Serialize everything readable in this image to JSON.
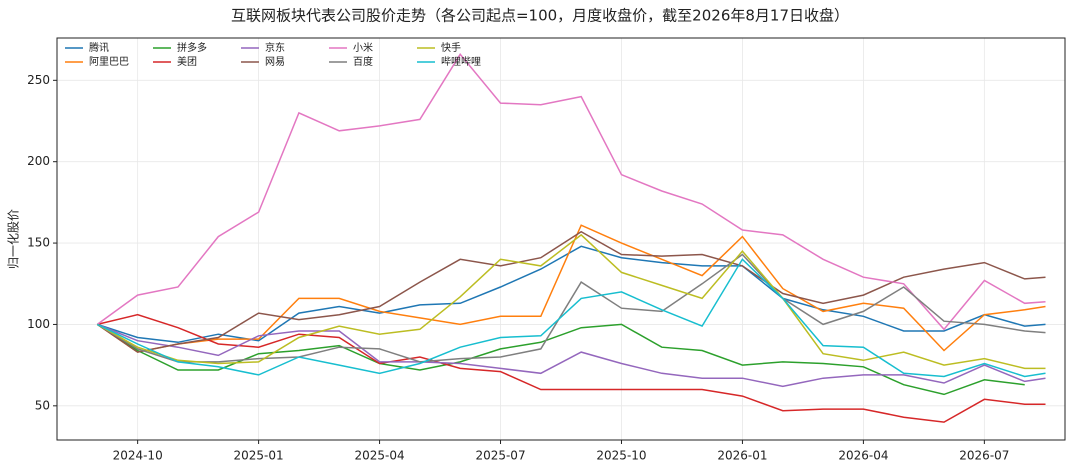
{
  "chart_data": {
    "type": "line",
    "title": "互联网板块代表公司股价走势（各公司起点=100，月度收盘价，截至2026年8月17日收盘）",
    "y_label": "归一化股价",
    "x": [
      "2024-09",
      "2024-10",
      "2024-11",
      "2024-12",
      "2025-01",
      "2025-02",
      "2025-03",
      "2025-04",
      "2025-05",
      "2025-06",
      "2025-07",
      "2025-08",
      "2025-09",
      "2025-10",
      "2025-11",
      "2025-12",
      "2026-01",
      "2026-02",
      "2026-03",
      "2026-04",
      "2026-05",
      "2026-06",
      "2026-07",
      "2026-08",
      "2026-08-17"
    ],
    "xlim": [
      "2024-08",
      "2026-09"
    ],
    "xticks": [
      "2024-10",
      "2025-01",
      "2025-04",
      "2025-07",
      "2025-10",
      "2026-01",
      "2026-04",
      "2026-07"
    ],
    "ylim": [
      29,
      276
    ],
    "yticks": [
      50,
      100,
      150,
      200,
      250
    ],
    "grid": true,
    "legend": "upper-left",
    "series": [
      {
        "name": "腾讯",
        "color": "#1f77b4",
        "values": [
          100,
          92,
          89,
          94,
          90,
          107,
          111,
          107,
          112,
          113,
          123,
          134,
          148,
          141,
          138,
          136,
          136,
          116,
          109,
          105,
          96,
          96,
          106,
          99,
          100
        ]
      },
      {
        "name": "阿里巴巴",
        "color": "#ff7f0e",
        "values": [
          100,
          83,
          88,
          91,
          91,
          116,
          116,
          108,
          104,
          100,
          105,
          105,
          161,
          150,
          140,
          130,
          154,
          122,
          108,
          113,
          110,
          84,
          106,
          109,
          111
        ]
      },
      {
        "name": "拼多多",
        "color": "#2ca02c",
        "values": [
          100,
          84,
          72,
          72,
          82,
          84,
          87,
          76,
          72,
          77,
          85,
          89,
          98,
          100,
          86,
          84,
          75,
          77,
          76,
          74,
          63,
          57,
          66,
          63,
          null
        ]
      },
      {
        "name": "美团",
        "color": "#d62728",
        "values": [
          100,
          106,
          98,
          88,
          86,
          94,
          92,
          76,
          80,
          73,
          71,
          60,
          60,
          60,
          60,
          60,
          56,
          47,
          48,
          48,
          43,
          40,
          54,
          51,
          51
        ]
      },
      {
        "name": "京东",
        "color": "#9467bd",
        "values": [
          100,
          90,
          86,
          81,
          93,
          96,
          96,
          77,
          77,
          76,
          73,
          70,
          83,
          76,
          70,
          67,
          67,
          62,
          67,
          69,
          69,
          64,
          75,
          65,
          67
        ]
      },
      {
        "name": "网易",
        "color": "#8c564b",
        "values": [
          100,
          83,
          88,
          92,
          107,
          103,
          106,
          111,
          126,
          140,
          136,
          141,
          157,
          143,
          142,
          143,
          136,
          119,
          113,
          118,
          129,
          134,
          138,
          128,
          129
        ]
      },
      {
        "name": "小米",
        "color": "#e377c2",
        "values": [
          100,
          118,
          123,
          154,
          169,
          230,
          219,
          222,
          226,
          266,
          236,
          235,
          240,
          192,
          182,
          174,
          158,
          155,
          140,
          129,
          125,
          97,
          127,
          113,
          114
        ]
      },
      {
        "name": "百度",
        "color": "#7f7f7f",
        "values": [
          100,
          85,
          77,
          77,
          79,
          80,
          86,
          85,
          77,
          79,
          80,
          85,
          126,
          110,
          108,
          125,
          143,
          116,
          100,
          108,
          123,
          102,
          100,
          96,
          95
        ]
      },
      {
        "name": "快手",
        "color": "#bcbd22",
        "values": [
          100,
          86,
          78,
          76,
          77,
          92,
          99,
          94,
          97,
          117,
          140,
          136,
          155,
          132,
          124,
          116,
          145,
          116,
          82,
          78,
          83,
          75,
          79,
          73,
          73
        ]
      },
      {
        "name": "哔哩哔哩",
        "color": "#17becf",
        "values": [
          100,
          88,
          77,
          74,
          69,
          80,
          75,
          70,
          76,
          86,
          92,
          93,
          116,
          120,
          109,
          99,
          140,
          116,
          87,
          86,
          70,
          68,
          76,
          68,
          70
        ]
      }
    ]
  }
}
